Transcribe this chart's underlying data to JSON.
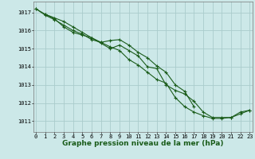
{
  "xlabel": "Graphe pression niveau de la mer (hPa)",
  "bg_color": "#cce8e8",
  "grid_color": "#aacccc",
  "line_color": "#1a5c1a",
  "x_ticks": [
    0,
    1,
    2,
    3,
    4,
    5,
    6,
    7,
    8,
    9,
    10,
    11,
    12,
    13,
    14,
    15,
    16,
    17,
    18,
    19,
    20,
    21,
    22,
    23
  ],
  "y_ticks": [
    1011,
    1012,
    1013,
    1014,
    1015,
    1016,
    1017
  ],
  "ylim": [
    1010.4,
    1017.6
  ],
  "xlim": [
    -0.3,
    23.3
  ],
  "line1": [
    1017.2,
    1016.9,
    1016.7,
    1016.5,
    1016.2,
    1015.9,
    1015.6,
    1015.3,
    1015.0,
    1015.2,
    1014.9,
    1014.6,
    1014.0,
    1013.9,
    1013.0,
    1012.7,
    1012.5,
    1012.1,
    1011.5,
    1011.2,
    1011.2,
    1011.2,
    1011.4,
    1011.6
  ],
  "line2": [
    1017.2,
    1016.85,
    1016.6,
    1016.3,
    1016.0,
    1015.8,
    1015.5,
    1015.35,
    1015.45,
    1015.5,
    1015.2,
    1014.8,
    1014.5,
    1014.05,
    1013.7,
    1013.0,
    1012.65,
    1011.8,
    null,
    null,
    null,
    null,
    null,
    null
  ],
  "line3": [
    null,
    1016.9,
    1016.65,
    1016.2,
    1015.9,
    1015.75,
    1015.6,
    1015.35,
    1015.1,
    1014.9,
    1014.4,
    1014.1,
    1013.7,
    1013.3,
    1013.1,
    1012.3,
    1011.8,
    1011.5,
    1011.3,
    1011.15,
    1011.15,
    1011.2,
    1011.5,
    1011.6
  ],
  "tick_fontsize": 5.0,
  "xlabel_fontsize": 6.5,
  "marker_size": 2.5,
  "line_width": 0.8
}
